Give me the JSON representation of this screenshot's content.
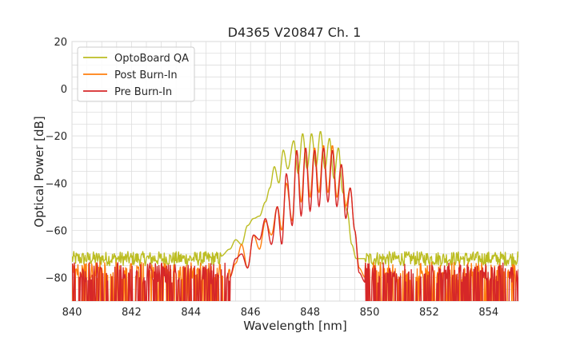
{
  "chart_data": {
    "type": "line",
    "title": "D4365 V20847 Ch. 1",
    "xlabel": "Wavelength [nm]",
    "ylabel": "Optical Power [dB]",
    "xlim": [
      840,
      855
    ],
    "ylim": [
      -90,
      20
    ],
    "xticks": [
      840,
      842,
      844,
      846,
      848,
      850,
      852,
      854
    ],
    "yticks": [
      20,
      0,
      -20,
      -40,
      -60,
      -80
    ],
    "grid": true,
    "legend_position": "top-left",
    "series": [
      {
        "name": "OptoBoard QA",
        "color": "#bcbd22",
        "noise_floor": -72,
        "noise_spread": 3,
        "x": [
          845.0,
          845.3,
          845.5,
          845.7,
          845.9,
          846.1,
          846.3,
          846.5,
          846.65,
          846.8,
          846.95,
          847.1,
          847.25,
          847.45,
          847.6,
          847.75,
          847.9,
          848.05,
          848.2,
          848.35,
          848.5,
          848.65,
          848.8,
          848.95,
          849.1,
          849.25,
          849.4,
          849.55,
          849.7,
          849.85
        ],
        "y": [
          -71,
          -68,
          -64,
          -66,
          -58,
          -55,
          -54,
          -48,
          -42,
          -33,
          -40,
          -26,
          -34,
          -22,
          -36,
          -19,
          -34,
          -19,
          -33,
          -18,
          -34,
          -21,
          -38,
          -25,
          -44,
          -52,
          -66,
          -72,
          -72,
          -72
        ]
      },
      {
        "name": "Post Burn-In",
        "color": "#ff7f0e",
        "noise_floor": -79,
        "noise_spread": 8,
        "x": [
          845.3,
          845.5,
          845.7,
          845.9,
          846.1,
          846.3,
          846.5,
          846.7,
          846.9,
          847.05,
          847.2,
          847.4,
          847.55,
          847.7,
          847.85,
          848.0,
          848.15,
          848.3,
          848.45,
          848.6,
          848.75,
          848.9,
          849.05,
          849.2,
          849.35,
          849.5,
          849.65,
          849.85
        ],
        "y": [
          -80,
          -74,
          -66,
          -76,
          -62,
          -68,
          -56,
          -62,
          -50,
          -60,
          -40,
          -56,
          -26,
          -48,
          -25,
          -46,
          -25,
          -44,
          -24,
          -44,
          -24,
          -46,
          -32,
          -50,
          -42,
          -60,
          -76,
          -80
        ]
      },
      {
        "name": "Pre Burn-In",
        "color": "#d62728",
        "noise_floor": -80,
        "noise_spread": 9,
        "x": [
          845.3,
          845.5,
          845.7,
          845.9,
          846.1,
          846.3,
          846.5,
          846.7,
          846.9,
          847.05,
          847.2,
          847.4,
          847.55,
          847.7,
          847.85,
          848.0,
          848.15,
          848.3,
          848.45,
          848.6,
          848.75,
          848.9,
          849.05,
          849.2,
          849.35,
          849.5,
          849.65,
          849.85
        ],
        "y": [
          -80,
          -72,
          -70,
          -76,
          -62,
          -64,
          -55,
          -66,
          -50,
          -66,
          -36,
          -58,
          -26,
          -54,
          -25,
          -52,
          -26,
          -50,
          -25,
          -48,
          -26,
          -50,
          -32,
          -55,
          -42,
          -60,
          -78,
          -82
        ]
      }
    ]
  }
}
